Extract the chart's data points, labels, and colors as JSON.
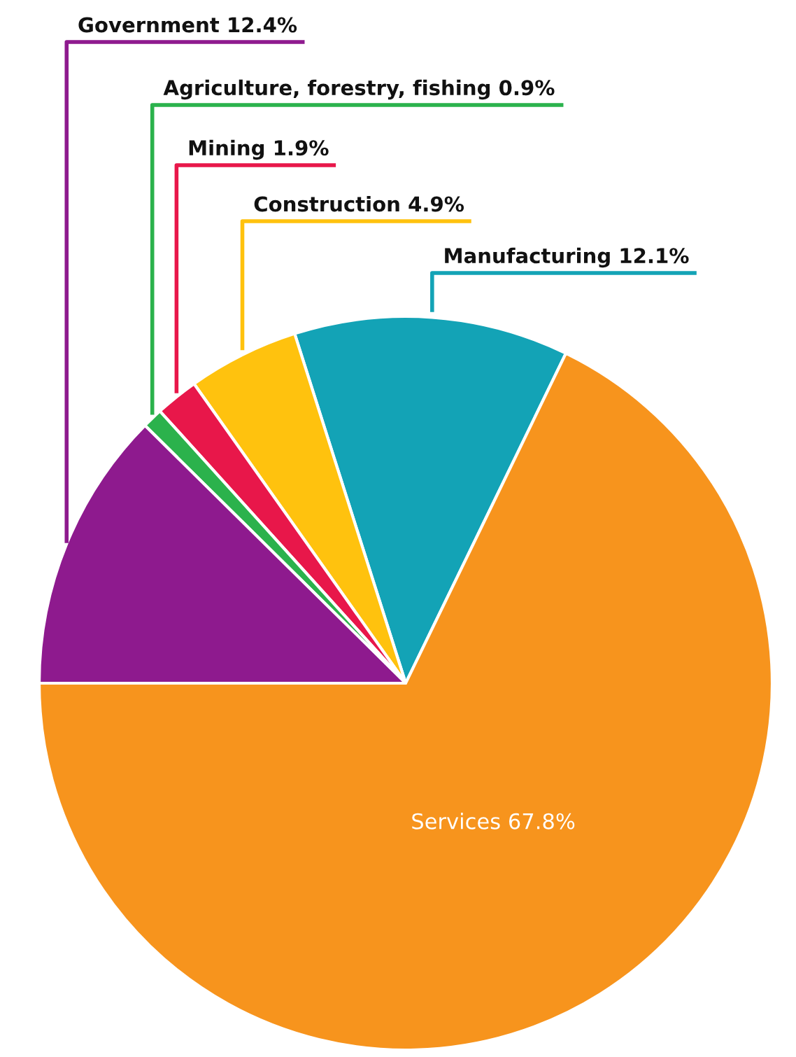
{
  "chart_data": {
    "type": "pie",
    "categories": [
      "Manufacturing",
      "Construction",
      "Mining",
      "Agriculture, forestry, fishing",
      "Government",
      "Services"
    ],
    "values": [
      12.1,
      4.9,
      1.9,
      0.9,
      12.4,
      67.8
    ],
    "value_labels": [
      "12.1%",
      "4.9%",
      "1.9%",
      "0.9%",
      "12.4%",
      "67.8%"
    ],
    "colors": [
      "#13a3b6",
      "#ffc20e",
      "#e8174a",
      "#2bb24c",
      "#8e1a8e",
      "#f7941d"
    ]
  }
}
